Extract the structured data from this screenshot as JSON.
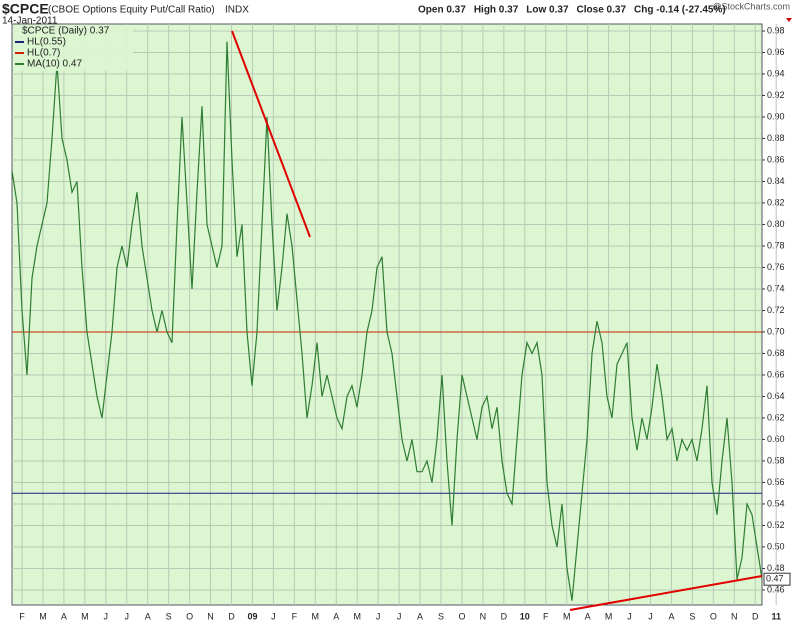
{
  "chart_data": {
    "type": "line",
    "title": "$CPCE",
    "subtitle": "(CBOE Options Equity Put/Call Ratio)",
    "exchange": "INDX",
    "date": "14-Jan-2011",
    "quote": [
      "Open 0.37",
      "High 0.37",
      "Low 0.37",
      "Close 0.37",
      "Chg -0.14 (-27.45%)"
    ],
    "watermark": "@StockCharts.com",
    "price_legend": "$CPCE (Daily) 0.37",
    "x_labels": [
      "F",
      "M",
      "A",
      "M",
      "J",
      "J",
      "A",
      "S",
      "O",
      "N",
      "D",
      "09",
      "J",
      "F",
      "M",
      "A",
      "M",
      "J",
      "J",
      "A",
      "S",
      "O",
      "N",
      "D",
      "10",
      "F",
      "M",
      "A",
      "M",
      "J",
      "J",
      "A",
      "S",
      "O",
      "N",
      "D",
      "11"
    ],
    "hlines": [
      {
        "name": "HL(0.55)",
        "value": 0.55,
        "color": "#1a237e"
      },
      {
        "name": "HL(0.7)",
        "value": 0.7,
        "color": "#cc2200"
      }
    ],
    "series": [
      {
        "name": "MA(10) 0.47",
        "color": "#2e7d32",
        "values": [
          0.85,
          0.82,
          0.72,
          0.66,
          0.75,
          0.78,
          0.8,
          0.82,
          0.88,
          0.95,
          0.88,
          0.86,
          0.83,
          0.84,
          0.76,
          0.7,
          0.67,
          0.64,
          0.62,
          0.66,
          0.7,
          0.76,
          0.78,
          0.76,
          0.8,
          0.83,
          0.78,
          0.75,
          0.72,
          0.7,
          0.72,
          0.7,
          0.69,
          0.8,
          0.9,
          0.82,
          0.74,
          0.83,
          0.91,
          0.8,
          0.78,
          0.76,
          0.78,
          0.97,
          0.86,
          0.77,
          0.8,
          0.7,
          0.65,
          0.7,
          0.8,
          0.9,
          0.8,
          0.72,
          0.76,
          0.81,
          0.78,
          0.73,
          0.68,
          0.62,
          0.65,
          0.69,
          0.64,
          0.66,
          0.64,
          0.62,
          0.61,
          0.64,
          0.65,
          0.63,
          0.66,
          0.7,
          0.72,
          0.76,
          0.77,
          0.7,
          0.68,
          0.64,
          0.6,
          0.58,
          0.6,
          0.57,
          0.57,
          0.58,
          0.56,
          0.6,
          0.66,
          0.58,
          0.52,
          0.6,
          0.66,
          0.64,
          0.62,
          0.6,
          0.63,
          0.64,
          0.61,
          0.63,
          0.58,
          0.55,
          0.54,
          0.6,
          0.66,
          0.69,
          0.68,
          0.69,
          0.66,
          0.56,
          0.52,
          0.5,
          0.54,
          0.48,
          0.45,
          0.5,
          0.55,
          0.6,
          0.68,
          0.71,
          0.69,
          0.64,
          0.62,
          0.67,
          0.68,
          0.69,
          0.62,
          0.59,
          0.62,
          0.6,
          0.63,
          0.67,
          0.64,
          0.6,
          0.61,
          0.58,
          0.6,
          0.59,
          0.6,
          0.58,
          0.61,
          0.65,
          0.56,
          0.53,
          0.58,
          0.62,
          0.56,
          0.47,
          0.49,
          0.54,
          0.53,
          0.5,
          0.47
        ]
      }
    ],
    "ylim": [
      0.446,
      0.9865
    ],
    "yticks": [
      0.46,
      0.48,
      {
        "value": 0.5,
        "label": "0.50"
      },
      0.52,
      0.54,
      0.56,
      0.58,
      {
        "value": 0.6,
        "label": "0.60"
      },
      0.62,
      0.64,
      0.66,
      0.68,
      {
        "value": 0.7,
        "label": "0.70"
      },
      0.72,
      0.74,
      0.76,
      0.78,
      {
        "value": 0.8,
        "label": "0.80"
      },
      0.82,
      0.84,
      0.86,
      0.88,
      {
        "value": 0.9,
        "label": "0.90"
      },
      0.92,
      0.94,
      0.96,
      0.98
    ],
    "grid": true,
    "plot_color": "#dcf6d2"
  }
}
